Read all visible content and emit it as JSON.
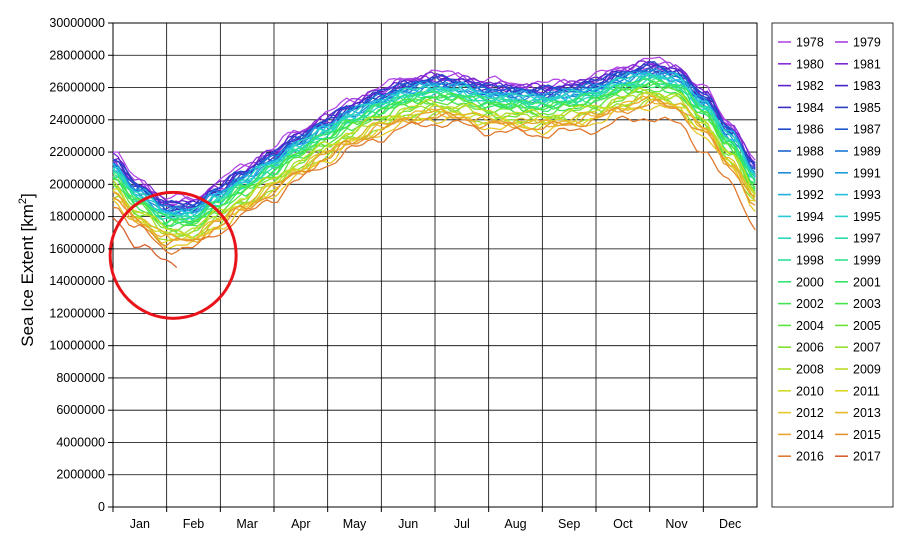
{
  "chart_data": {
    "type": "line",
    "title": "",
    "ylabel": "Sea Ice Extent [km",
    "ylabel_sup": "2",
    "ylabel_end": "]",
    "ylim": [
      0,
      30000000
    ],
    "yticks": [
      0,
      2000000,
      4000000,
      6000000,
      8000000,
      10000000,
      12000000,
      14000000,
      16000000,
      18000000,
      20000000,
      22000000,
      24000000,
      26000000,
      28000000,
      30000000
    ],
    "ytick_labels": [
      "0",
      "2000000",
      "4000000",
      "6000000",
      "8000000",
      "10000000",
      "12000000",
      "14000000",
      "16000000",
      "18000000",
      "20000000",
      "22000000",
      "24000000",
      "26000000",
      "28000000",
      "30000000"
    ],
    "categories": [
      "Jan",
      "Feb",
      "Mar",
      "Apr",
      "May",
      "Jun",
      "Jul",
      "Aug",
      "Sep",
      "Oct",
      "Nov",
      "Dec"
    ],
    "x_unit": "day of year",
    "xlim": [
      1,
      365
    ],
    "grid": true,
    "legend_position": "right",
    "legend_columns": 2,
    "highlight_circle": {
      "x_day": 35,
      "y_value": 15600000,
      "color": "#e8141a"
    },
    "baseline_year": {
      "x": [
        1,
        15,
        32,
        46,
        60,
        74,
        91,
        105,
        121,
        135,
        152,
        166,
        182,
        196,
        213,
        227,
        244,
        258,
        274,
        288,
        305,
        319,
        335,
        349,
        365
      ],
      "values": [
        20300000,
        18700000,
        17500000,
        17500000,
        18500000,
        19500000,
        20600000,
        21700000,
        22700000,
        23600000,
        24400000,
        25000000,
        25300000,
        25200000,
        24800000,
        24700000,
        24600000,
        24800000,
        25100000,
        25700000,
        26100000,
        25800000,
        24300000,
        22300000,
        19800000
      ]
    },
    "series": [
      {
        "name": "1978",
        "color": "#b44be6",
        "offset": 1600000,
        "end_day": 365
      },
      {
        "name": "1979",
        "color": "#a43fe0",
        "offset": 1400000,
        "end_day": 365
      },
      {
        "name": "1980",
        "color": "#8c2fd8",
        "offset": 1300000,
        "end_day": 365
      },
      {
        "name": "1981",
        "color": "#7a28d0",
        "offset": 1350000,
        "end_day": 365
      },
      {
        "name": "1982",
        "color": "#5e24cc",
        "offset": 1250000,
        "end_day": 365
      },
      {
        "name": "1983",
        "color": "#4824c8",
        "offset": 1150000,
        "end_day": 365
      },
      {
        "name": "1984",
        "color": "#3830c4",
        "offset": 1050000,
        "end_day": 365
      },
      {
        "name": "1985",
        "color": "#2c3ec4",
        "offset": 1100000,
        "end_day": 365
      },
      {
        "name": "1986",
        "color": "#2048c8",
        "offset": 1200000,
        "end_day": 365
      },
      {
        "name": "1987",
        "color": "#1e56cc",
        "offset": 1000000,
        "end_day": 365
      },
      {
        "name": "1988",
        "color": "#1c66d0",
        "offset": 950000,
        "end_day": 365
      },
      {
        "name": "1989",
        "color": "#1c78d4",
        "offset": 900000,
        "end_day": 365
      },
      {
        "name": "1990",
        "color": "#1e8ad8",
        "offset": 800000,
        "end_day": 365
      },
      {
        "name": "1991",
        "color": "#209cdc",
        "offset": 700000,
        "end_day": 365
      },
      {
        "name": "1992",
        "color": "#22aede",
        "offset": 850000,
        "end_day": 365
      },
      {
        "name": "1993",
        "color": "#24bede",
        "offset": 650000,
        "end_day": 365
      },
      {
        "name": "1994",
        "color": "#26cad8",
        "offset": 600000,
        "end_day": 365
      },
      {
        "name": "1995",
        "color": "#28d2cc",
        "offset": 450000,
        "end_day": 365
      },
      {
        "name": "1996",
        "color": "#2ad8be",
        "offset": 700000,
        "end_day": 365
      },
      {
        "name": "1997",
        "color": "#2cdcae",
        "offset": 350000,
        "end_day": 365
      },
      {
        "name": "1998",
        "color": "#2ee09c",
        "offset": 400000,
        "end_day": 365
      },
      {
        "name": "1999",
        "color": "#30e28a",
        "offset": 250000,
        "end_day": 365
      },
      {
        "name": "2000",
        "color": "#32e478",
        "offset": 200000,
        "end_day": 365
      },
      {
        "name": "2001",
        "color": "#36e466",
        "offset": 300000,
        "end_day": 365
      },
      {
        "name": "2002",
        "color": "#3ee456",
        "offset": 0,
        "end_day": 365
      },
      {
        "name": "2003",
        "color": "#4ae448",
        "offset": 100000,
        "end_day": 365
      },
      {
        "name": "2004",
        "color": "#5ae43e",
        "offset": -100000,
        "end_day": 365
      },
      {
        "name": "2005",
        "color": "#6ce236",
        "offset": -400000,
        "end_day": 365
      },
      {
        "name": "2006",
        "color": "#80e030",
        "offset": -600000,
        "end_day": 365
      },
      {
        "name": "2007",
        "color": "#96de2c",
        "offset": -900000,
        "end_day": 365
      },
      {
        "name": "2008",
        "color": "#aade2a",
        "offset": -500000,
        "end_day": 365
      },
      {
        "name": "2009",
        "color": "#bedc28",
        "offset": -300000,
        "end_day": 365
      },
      {
        "name": "2010",
        "color": "#d0da28",
        "offset": -700000,
        "end_day": 365
      },
      {
        "name": "2011",
        "color": "#ded428",
        "offset": -1000000,
        "end_day": 365
      },
      {
        "name": "2012",
        "color": "#e6c82a",
        "offset": -1200000,
        "end_day": 365
      },
      {
        "name": "2013",
        "color": "#e8b82c",
        "offset": -800000,
        "end_day": 365
      },
      {
        "name": "2014",
        "color": "#e8a62e",
        "offset": -900000,
        "end_day": 365
      },
      {
        "name": "2015",
        "color": "#e69230",
        "offset": -1100000,
        "end_day": 365
      },
      {
        "name": "2016",
        "color": "#e07a30",
        "offset": -1500000,
        "end_day": 365
      },
      {
        "name": "2017",
        "color": "#d8602e",
        "offset": -2400000,
        "end_day": 38
      }
    ]
  }
}
